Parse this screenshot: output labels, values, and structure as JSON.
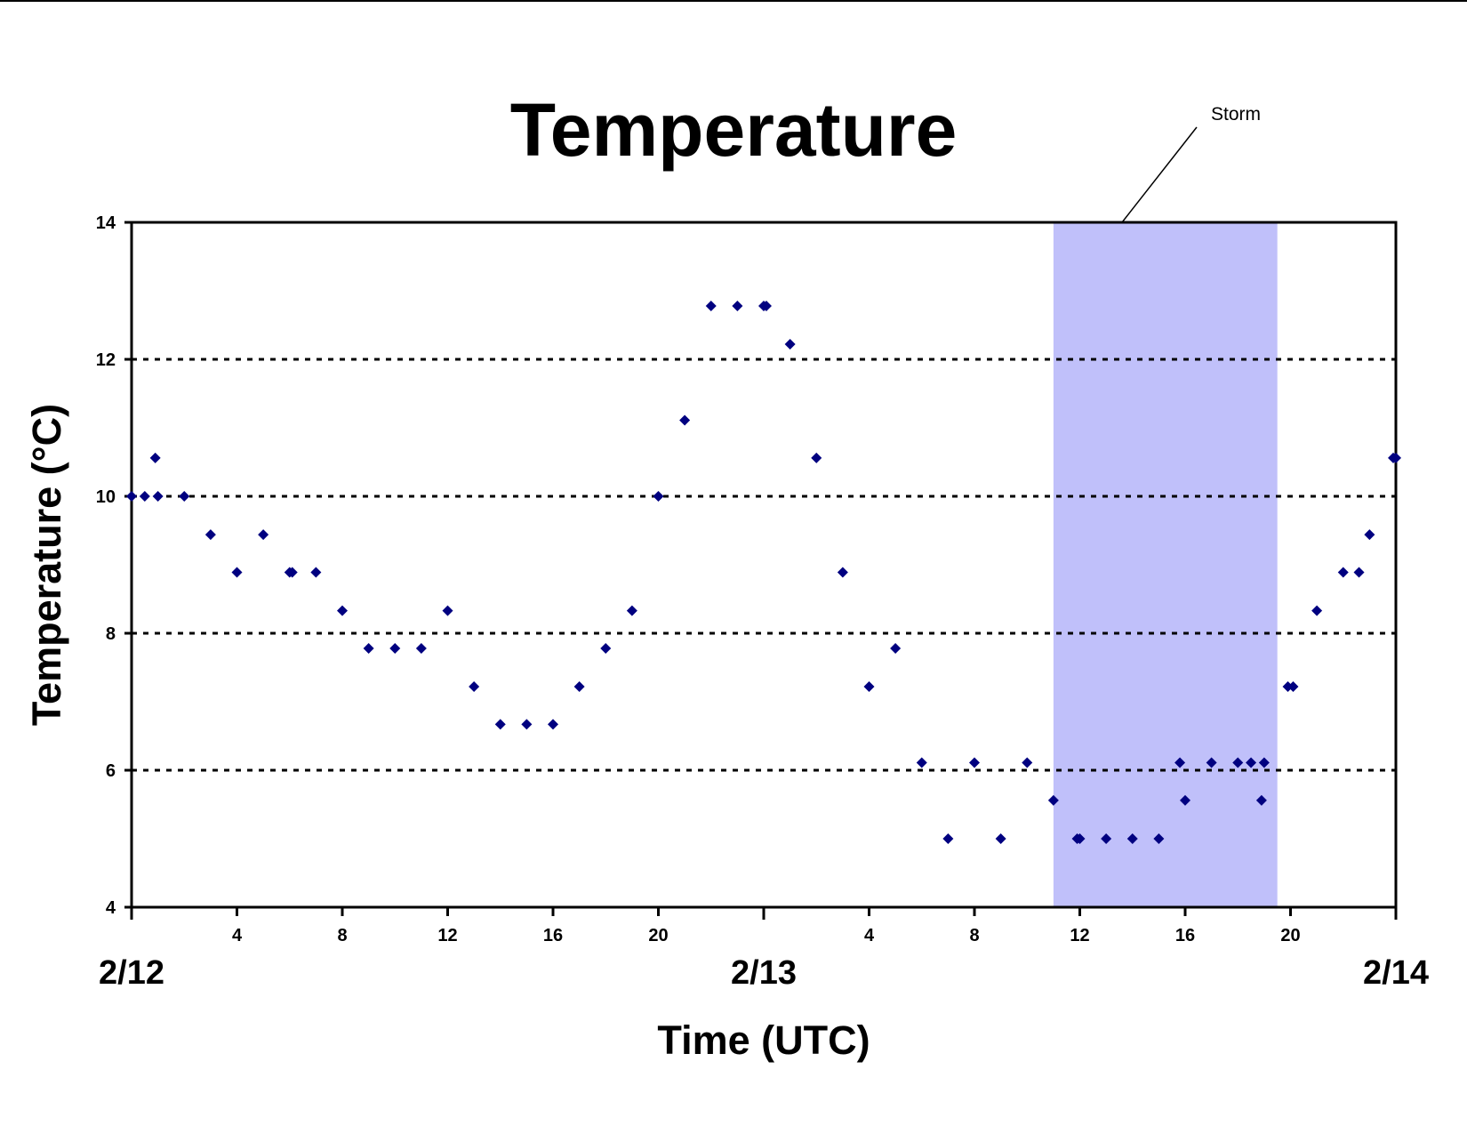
{
  "chart_data": {
    "type": "scatter",
    "title": "Temperature",
    "xlabel": "Time (UTC)",
    "ylabel": "Temperature (°C)",
    "xlim": [
      0,
      48
    ],
    "ylim": [
      4,
      14
    ],
    "yticks": [
      4,
      6,
      8,
      10,
      12,
      14
    ],
    "grid_y": [
      6,
      8,
      10,
      12
    ],
    "x_hour_ticks": [
      {
        "x": 4,
        "label": "4"
      },
      {
        "x": 8,
        "label": "8"
      },
      {
        "x": 12,
        "label": "12"
      },
      {
        "x": 16,
        "label": "16"
      },
      {
        "x": 20,
        "label": "20"
      },
      {
        "x": 28,
        "label": "4"
      },
      {
        "x": 32,
        "label": "8"
      },
      {
        "x": 36,
        "label": "12"
      },
      {
        "x": 40,
        "label": "16"
      },
      {
        "x": 44,
        "label": "20"
      }
    ],
    "x_date_ticks": [
      {
        "x": 0,
        "label": "2/12"
      },
      {
        "x": 24,
        "label": "2/13"
      },
      {
        "x": 48,
        "label": "2/14"
      }
    ],
    "annotation": {
      "label": "Storm",
      "x_start": 35,
      "x_end": 43.5,
      "color": "#c0c0fa"
    },
    "marker_color": "#000080",
    "points": [
      [
        0,
        10
      ],
      [
        0.5,
        10
      ],
      [
        0.9,
        10.56
      ],
      [
        1,
        10
      ],
      [
        2,
        10
      ],
      [
        3,
        9.44
      ],
      [
        4,
        8.89
      ],
      [
        5,
        9.44
      ],
      [
        6,
        8.89
      ],
      [
        6.1,
        8.89
      ],
      [
        7,
        8.89
      ],
      [
        8,
        8.33
      ],
      [
        9,
        7.78
      ],
      [
        10,
        7.78
      ],
      [
        11,
        7.78
      ],
      [
        12,
        8.33
      ],
      [
        13,
        7.22
      ],
      [
        14,
        6.67
      ],
      [
        15,
        6.67
      ],
      [
        16,
        6.67
      ],
      [
        17,
        7.22
      ],
      [
        18,
        7.78
      ],
      [
        19,
        8.33
      ],
      [
        20,
        10
      ],
      [
        21,
        11.11
      ],
      [
        22,
        12.78
      ],
      [
        23,
        12.78
      ],
      [
        24,
        12.78
      ],
      [
        24.1,
        12.78
      ],
      [
        25,
        12.22
      ],
      [
        26,
        10.56
      ],
      [
        27,
        8.89
      ],
      [
        28,
        7.22
      ],
      [
        29,
        7.78
      ],
      [
        30,
        6.11
      ],
      [
        31,
        5
      ],
      [
        32,
        6.11
      ],
      [
        33,
        5
      ],
      [
        34,
        6.11
      ],
      [
        35,
        5.56
      ],
      [
        35.9,
        5
      ],
      [
        36,
        5
      ],
      [
        37,
        5
      ],
      [
        38,
        5
      ],
      [
        39,
        5
      ],
      [
        39.8,
        6.11
      ],
      [
        40,
        5.56
      ],
      [
        41,
        6.11
      ],
      [
        42,
        6.11
      ],
      [
        42.5,
        6.11
      ],
      [
        42.9,
        5.56
      ],
      [
        43,
        6.11
      ],
      [
        43.9,
        7.22
      ],
      [
        44.1,
        7.22
      ],
      [
        45,
        8.33
      ],
      [
        46,
        8.89
      ],
      [
        46.6,
        8.89
      ],
      [
        47,
        9.44
      ],
      [
        47.9,
        10.56
      ],
      [
        48,
        10.56
      ]
    ]
  }
}
